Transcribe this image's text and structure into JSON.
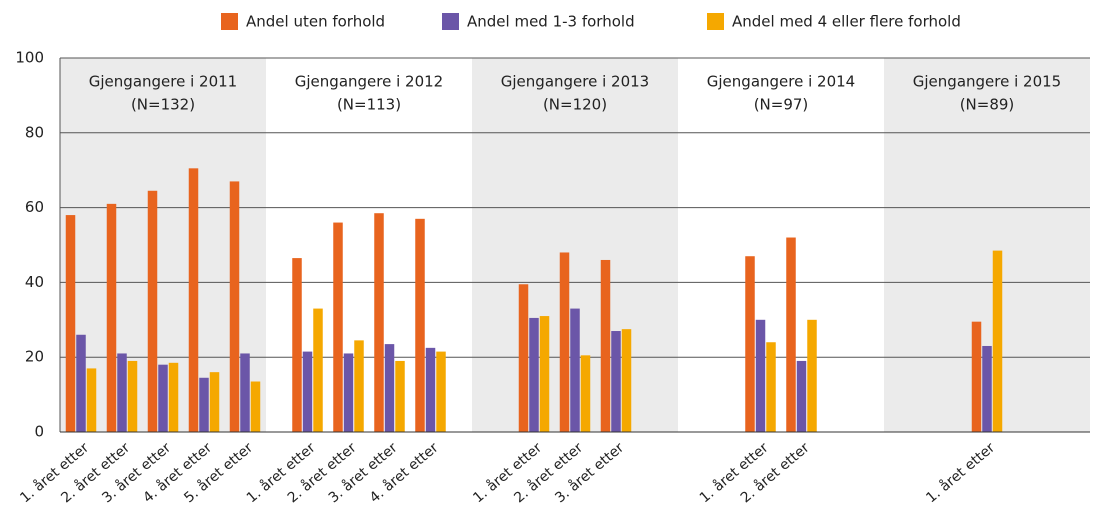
{
  "chart_data": {
    "type": "bar",
    "series": [
      {
        "name": "Andel uten forhold",
        "color": "#e8641e"
      },
      {
        "name": "Andel med 1-3 forhold",
        "color": "#6b56a8"
      },
      {
        "name": "Andel med 4 eller flere forhold",
        "color": "#f5a800"
      }
    ],
    "panels": [
      {
        "title": "Gjengangere i 2011",
        "subtitle": "(N=132)",
        "categories": [
          "1. året etter",
          "2. året etter",
          "3. året etter",
          "4. året etter",
          "5. året etter"
        ],
        "values": [
          [
            58,
            61,
            64.5,
            70.5,
            67
          ],
          [
            26,
            21,
            18,
            14.5,
            21
          ],
          [
            17,
            19,
            18.5,
            16,
            13.5
          ]
        ]
      },
      {
        "title": "Gjengangere i 2012",
        "subtitle": "(N=113)",
        "categories": [
          "1. året etter",
          "2. året etter",
          "3. året etter",
          "4. året etter"
        ],
        "values": [
          [
            46.5,
            56,
            58.5,
            57
          ],
          [
            21.5,
            21,
            23.5,
            22.5
          ],
          [
            33,
            24.5,
            19,
            21.5
          ]
        ]
      },
      {
        "title": "Gjengangere i 2013",
        "subtitle": "(N=120)",
        "categories": [
          "1. året etter",
          "2. året etter",
          "3. året etter"
        ],
        "values": [
          [
            39.5,
            48,
            46
          ],
          [
            30.5,
            33,
            27
          ],
          [
            31,
            20.5,
            27.5
          ]
        ]
      },
      {
        "title": "Gjengangere i 2014",
        "subtitle": "(N=97)",
        "categories": [
          "1. året etter",
          "2. året etter"
        ],
        "values": [
          [
            47,
            52
          ],
          [
            30,
            19
          ],
          [
            24,
            30
          ]
        ]
      },
      {
        "title": "Gjengangere i 2015",
        "subtitle": "(N=89)",
        "categories": [
          "1. året etter"
        ],
        "values": [
          [
            29.5
          ],
          [
            23
          ],
          [
            48.5
          ]
        ]
      }
    ],
    "ylim": [
      0,
      100
    ],
    "yticks": [
      0,
      20,
      40,
      60,
      80,
      100
    ],
    "grid": true
  }
}
